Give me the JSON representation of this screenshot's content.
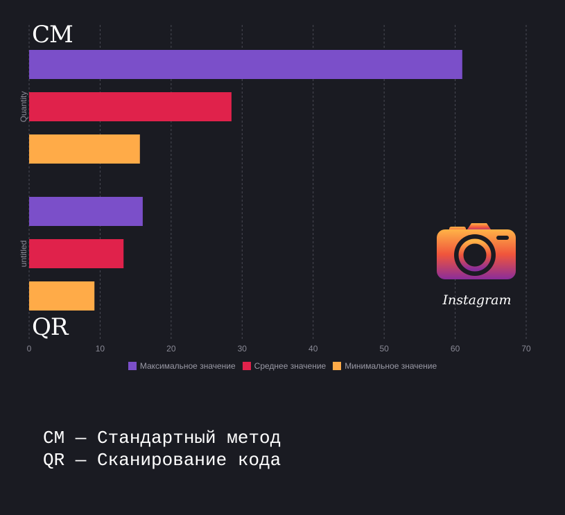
{
  "chart_data": {
    "type": "bar",
    "orientation": "horizontal",
    "categories": [
      "Quantity",
      "untitled"
    ],
    "series": [
      {
        "name": "Максимальное значение",
        "color": "#7b4fc9",
        "values": [
          61,
          16
        ]
      },
      {
        "name": "Среднее значение",
        "color": "#e0224b",
        "values": [
          28.5,
          13.3
        ]
      },
      {
        "name": "Минимальное значение",
        "color": "#ffab48",
        "values": [
          15.6,
          9.2
        ]
      }
    ],
    "xlim": [
      0,
      70
    ],
    "x_ticks": [
      "0",
      "10",
      "20",
      "30",
      "40",
      "50",
      "60",
      "70"
    ],
    "grid": true,
    "legend_position": "bottom"
  },
  "labels": {
    "cm": "CM",
    "qr": "QR"
  },
  "notes": [
    "CM — Стандартный метод",
    "QR — Сканирование кода"
  ],
  "logo": {
    "word": "Instagram",
    "icon": "camera-icon"
  }
}
